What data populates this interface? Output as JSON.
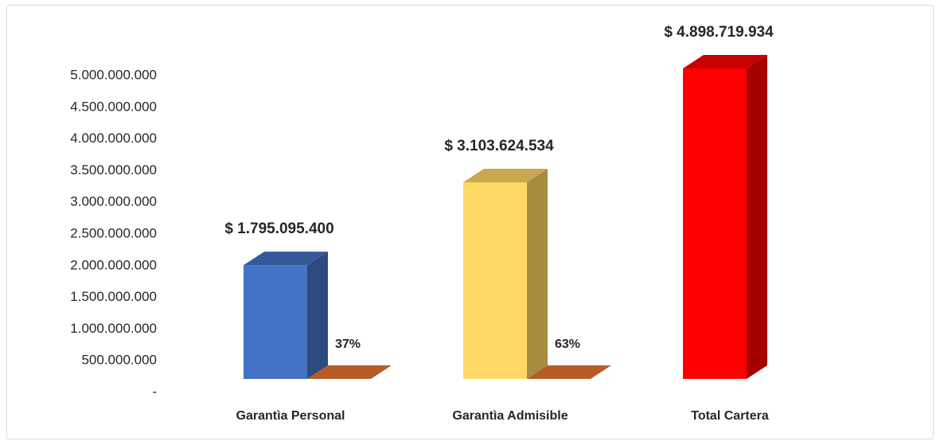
{
  "chart_data": {
    "type": "bar3d",
    "categories": [
      "Garantìa Personal",
      "Garantìa Admisible",
      "Total Cartera"
    ],
    "series": [
      {
        "colors": [
          "#4472c4",
          "#ffd966",
          "#ff0000"
        ],
        "values": [
          1795095400,
          3103624534,
          4898719934
        ],
        "value_labels": [
          "$ 1.795.095.400",
          "$ 3.103.624.534",
          "$ 4.898.719.934"
        ]
      },
      {
        "color": "#b85c26",
        "values": [
          37,
          63,
          null
        ],
        "value_labels": [
          "37%",
          "63%",
          null
        ]
      }
    ],
    "ylim": [
      0,
      5000000000
    ],
    "yticks": [
      {
        "value": 0,
        "label": "-"
      },
      {
        "value": 500000000,
        "label": "500.000.000"
      },
      {
        "value": 1000000000,
        "label": "1.000.000.000"
      },
      {
        "value": 1500000000,
        "label": "1.500.000.000"
      },
      {
        "value": 2000000000,
        "label": "2.000.000.000"
      },
      {
        "value": 2500000000,
        "label": "2.500.000.000"
      },
      {
        "value": 3000000000,
        "label": "3.000.000.000"
      },
      {
        "value": 3500000000,
        "label": "3.500.000.000"
      },
      {
        "value": 4000000000,
        "label": "4.000.000.000"
      },
      {
        "value": 4500000000,
        "label": "4.500.000.000"
      },
      {
        "value": 5000000000,
        "label": "5.000.000.000"
      }
    ],
    "grid": false
  }
}
